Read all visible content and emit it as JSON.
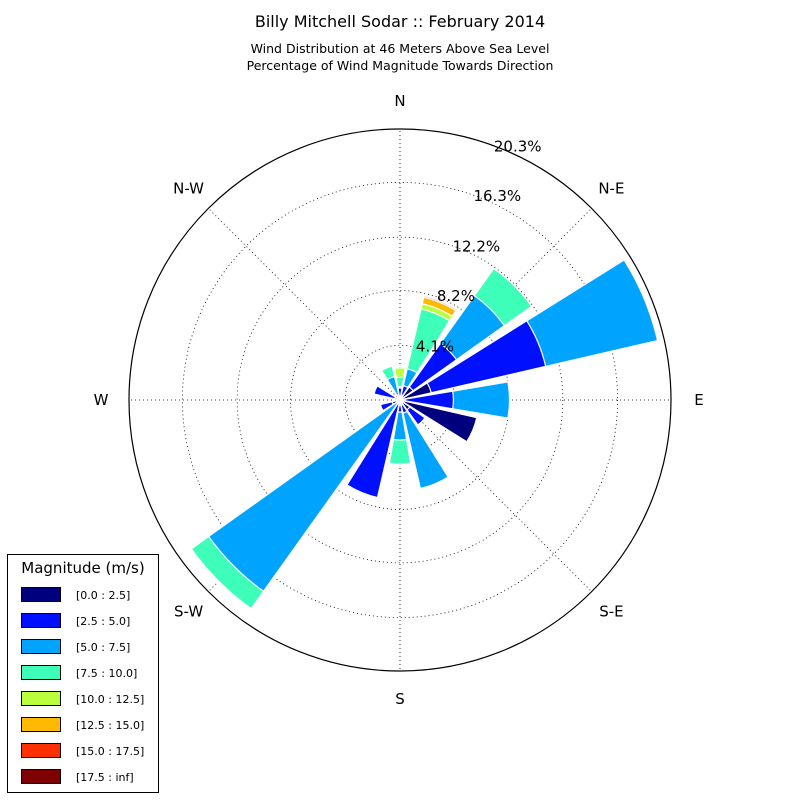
{
  "title": "Billy Mitchell Sodar :: February 2014",
  "subtitle_1": "Wind Distribution at 46 Meters Above Sea Level",
  "subtitle_2": "Percentage of Wind Magnitude Towards Direction",
  "legend": {
    "title": "Magnitude (m/s)",
    "placement": "lower-left",
    "bins": [
      {
        "label": "[0.0 : 2.5]",
        "color": "#00007f"
      },
      {
        "label": "[2.5 : 5.0]",
        "color": "#0010ff"
      },
      {
        "label": "[5.0 : 7.5]",
        "color": "#00a4ff"
      },
      {
        "label": "[7.5 : 10.0]",
        "color": "#3dffb9"
      },
      {
        "label": "[10.0 : 12.5]",
        "color": "#b9ff3d"
      },
      {
        "label": "[12.5 : 15.0]",
        "color": "#ffb900"
      },
      {
        "label": "[15.0 : 17.5]",
        "color": "#ff3000"
      },
      {
        "label": "[17.5 : inf]",
        "color": "#7f0000"
      }
    ]
  },
  "chart_data": {
    "type": "windrose",
    "title": "Billy Mitchell Sodar :: February 2014",
    "radial_unit": "percent",
    "radial_max": 20.3,
    "grid": true,
    "rings": [
      {
        "value": 4.1,
        "label": "4.1%"
      },
      {
        "value": 8.2,
        "label": "8.2%"
      },
      {
        "value": 12.2,
        "label": "12.2%"
      },
      {
        "value": 16.3,
        "label": "16.3%"
      },
      {
        "value": 20.3,
        "label": "20.3%"
      }
    ],
    "direction_labels": [
      {
        "angle": 0,
        "label": "N"
      },
      {
        "angle": 45,
        "label": "N-E"
      },
      {
        "angle": 90,
        "label": "E"
      },
      {
        "angle": 135,
        "label": "S-E"
      },
      {
        "angle": 180,
        "label": "S"
      },
      {
        "angle": 225,
        "label": "S-W"
      },
      {
        "angle": 270,
        "label": "W"
      },
      {
        "angle": 315,
        "label": "N-W"
      }
    ],
    "sector_directions": [
      0,
      22.5,
      45,
      67.5,
      90,
      112.5,
      135,
      157.5,
      180,
      202.5,
      225,
      247.5,
      270,
      292.5,
      315,
      337.5
    ],
    "bins": [
      "[0.0 : 2.5]",
      "[2.5 : 5.0]",
      "[5.0 : 7.5]",
      "[7.5 : 10.0]",
      "[10.0 : 12.5]",
      "[12.5 : 15.0]",
      "[15.0 : 17.5]",
      "[17.5 : inf]"
    ],
    "cumulative_percent": [
      [
        0.3,
        0.9,
        1.0,
        1.7,
        2.4,
        2.4,
        2.4,
        2.4
      ],
      [
        0.4,
        1.1,
        2.4,
        7.0,
        7.4,
        7.9,
        8.0,
        8.0
      ],
      [
        1.2,
        5.2,
        9.6,
        12.1,
        12.1,
        12.1,
        12.1,
        12.1
      ],
      [
        2.4,
        11.2,
        19.8,
        19.8,
        19.8,
        19.8,
        19.8,
        19.8
      ],
      [
        0.4,
        4.0,
        8.2,
        8.2,
        8.2,
        8.2,
        8.2,
        8.2
      ],
      [
        5.9,
        5.9,
        5.9,
        5.9,
        5.9,
        5.9,
        5.9,
        5.9
      ],
      [
        0.9,
        2.3,
        2.3,
        2.3,
        2.3,
        2.3,
        2.3,
        2.3
      ],
      [
        0.4,
        1.0,
        6.8,
        6.8,
        6.8,
        6.8,
        6.8,
        6.8
      ],
      [
        0.4,
        0.9,
        3.0,
        4.8,
        4.8,
        4.8,
        4.8,
        4.8
      ],
      [
        0.3,
        7.5,
        7.5,
        7.5,
        7.5,
        7.5,
        7.5,
        7.5
      ],
      [
        0.1,
        0.1,
        17.6,
        19.2,
        19.2,
        19.2,
        19.2,
        19.2
      ],
      [
        0.6,
        1.5,
        1.5,
        1.5,
        1.5,
        1.5,
        1.5,
        1.5
      ],
      [
        0.3,
        0.3,
        0.3,
        0.3,
        0.3,
        0.3,
        0.3,
        0.3
      ],
      [
        0.4,
        2.0,
        2.0,
        2.0,
        2.0,
        2.0,
        2.0,
        2.0
      ],
      [
        0.0,
        0.1,
        0.1,
        0.1,
        0.1,
        0.1,
        0.1,
        0.1
      ],
      [
        0.0,
        0.4,
        1.8,
        2.6,
        2.6,
        2.6,
        2.6,
        2.6
      ]
    ]
  }
}
